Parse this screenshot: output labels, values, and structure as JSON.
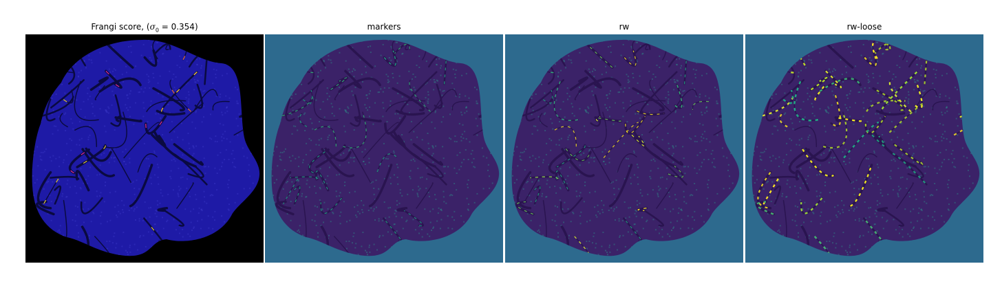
{
  "panels": [
    {
      "id": "frangi",
      "title_prefix": "Frangi score, (",
      "sigma_symbol": "σ",
      "sigma_subscript": "0",
      "title_equals": " = 0.354)",
      "background": "#000000",
      "blob_fill": "#1e1aa6",
      "accents": [
        "#ffde3a",
        "#ff7a3a",
        "#ff2fa0"
      ]
    },
    {
      "id": "markers",
      "title": "markers",
      "background": "#2d6a8e",
      "blob_fill": "#3b2268",
      "accents": [
        "#22a884",
        "#35b779",
        "#20a486"
      ]
    },
    {
      "id": "rw",
      "title": "rw",
      "background": "#2d6a8e",
      "blob_fill": "#3b2268",
      "accents": [
        "#22a884",
        "#6ece58",
        "#fde725"
      ]
    },
    {
      "id": "rw-loose",
      "title": "rw-loose",
      "background": "#2d6a8e",
      "blob_fill": "#3b2268",
      "accents": [
        "#fde725",
        "#b5de2b",
        "#22a884"
      ]
    }
  ]
}
